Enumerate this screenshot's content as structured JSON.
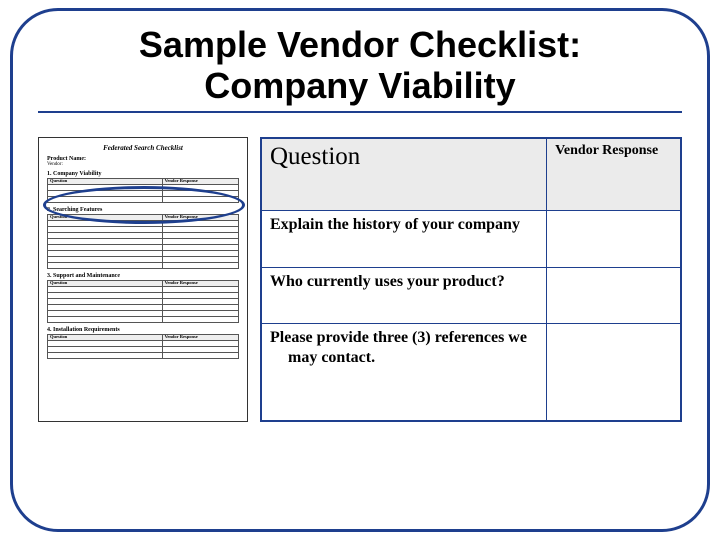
{
  "title": {
    "line1": "Sample Vendor Checklist:",
    "line2": "Company Viability"
  },
  "colors": {
    "frame": "#1e3f8e",
    "header_bg": "#ebebeb"
  },
  "main_table": {
    "header_question": "Question",
    "header_response": "Vendor Response",
    "rows": [
      {
        "q": "Explain the history of your company"
      },
      {
        "q": "Who currently uses your product?"
      },
      {
        "q_line1": "Please provide three (3) references we",
        "q_line2": "may contact."
      }
    ]
  },
  "thumbnail": {
    "title": "Federated Search Checklist",
    "product_label": "Product Name:",
    "vendor_label": "Vendor:",
    "sections": [
      {
        "num": "1.",
        "name": "Company Viability",
        "rows": 3
      },
      {
        "num": "2.",
        "name": "Searching Features",
        "rows": 8
      },
      {
        "num": "3.",
        "name": "Support and Maintenance",
        "rows": 6
      },
      {
        "num": "4.",
        "name": "Installation Requirements",
        "rows": 3
      }
    ],
    "col_q": "Question",
    "col_r": "Vendor Response"
  }
}
